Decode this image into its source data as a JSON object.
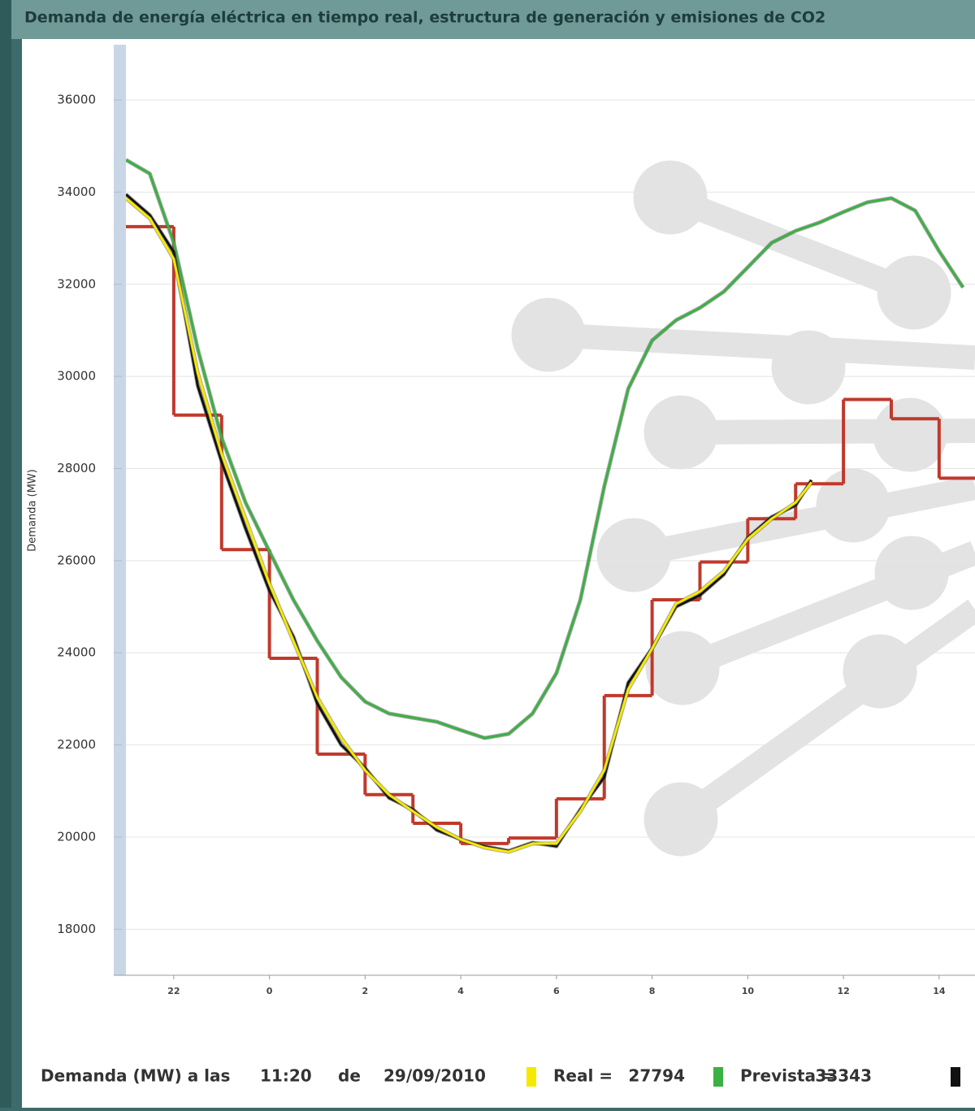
{
  "chart_data": {
    "type": "line",
    "title": "Demanda de energía eléctrica en tiempo real, estructura de generación y emisiones de CO2",
    "y_label": "Demanda (MW)",
    "xlim": [
      -3,
      14.75
    ],
    "xticks": [
      {
        "value": -2,
        "label": "22"
      },
      {
        "value": 0,
        "label": "0"
      },
      2,
      4,
      6,
      8,
      10,
      12,
      14
    ],
    "ylim": [
      17000,
      37200
    ],
    "yticks": [
      18000,
      20000,
      22000,
      24000,
      26000,
      28000,
      30000,
      32000,
      34000,
      36000
    ],
    "grid": true,
    "status": {
      "prefix": "Demanda (MW) a las",
      "time": "11:20",
      "de": "de",
      "date": "29/09/2010"
    },
    "series": [
      {
        "color": "#c0392b",
        "step": true,
        "x": [
          -3,
          -2,
          -1,
          0,
          1,
          2,
          3,
          4,
          5,
          6,
          7,
          8,
          9,
          10,
          11,
          12,
          13,
          14
        ],
        "values": [
          33250,
          29160,
          26240,
          23880,
          21800,
          20920,
          20300,
          19860,
          19980,
          20830,
          23070,
          25150,
          25970,
          26910,
          27670,
          29500,
          29080,
          27790
        ]
      },
      {
        "name": "Prevista =",
        "color": "#3cb043",
        "current": 33343,
        "x": [
          -3,
          -2.5,
          -2,
          -1.5,
          -1,
          -0.5,
          0,
          0.5,
          1,
          1.5,
          2,
          2.5,
          3,
          3.5,
          4,
          4.5,
          5,
          5.5,
          6,
          6.5,
          7,
          7.5,
          8,
          8.5,
          9,
          9.5,
          10,
          10.5,
          11,
          11.5,
          12,
          12.5,
          13,
          13.5,
          14,
          14.5
        ],
        "values": [
          34700,
          34400,
          32900,
          30600,
          28670,
          27260,
          26200,
          25150,
          24260,
          23470,
          22940,
          22680,
          22590,
          22500,
          22320,
          22150,
          22240,
          22680,
          23560,
          25150,
          27610,
          29730,
          30780,
          31220,
          31490,
          31840,
          32370,
          32900,
          33160,
          33340,
          33570,
          33780,
          33870,
          33600,
          32720,
          31930
        ]
      },
      {
        "color": "#111111",
        "x": [
          -3,
          -2.5,
          -2,
          -1.5,
          -1,
          -0.5,
          0,
          0.5,
          1,
          1.5,
          2,
          2.5,
          3,
          3.5,
          4,
          4.5,
          5,
          5.5,
          6,
          6.5,
          7,
          7.5,
          8,
          8.5,
          9,
          9.5,
          10,
          10.5,
          11,
          11.33
        ],
        "values": [
          33950,
          33500,
          32700,
          29800,
          28150,
          26700,
          25350,
          24350,
          22900,
          22000,
          21500,
          20850,
          20600,
          20150,
          19950,
          19800,
          19700,
          19880,
          19800,
          20600,
          21300,
          23350,
          24100,
          25000,
          25250,
          25700,
          26500,
          26950,
          27200,
          27750
        ]
      },
      {
        "name": "Real =",
        "color": "#f5e900",
        "current": 27794,
        "x": [
          -3,
          -2.5,
          -2,
          -1.5,
          -1,
          -0.5,
          0,
          0.5,
          1,
          1.5,
          2,
          2.5,
          3,
          3.5,
          4,
          4.5,
          5,
          5.5,
          6,
          6.5,
          7,
          7.5,
          8,
          8.5,
          9,
          9.5,
          10,
          10.5,
          11,
          11.33
        ],
        "values": [
          33870,
          33430,
          32550,
          30080,
          28320,
          26910,
          25500,
          24260,
          23030,
          22150,
          21450,
          20920,
          20560,
          20210,
          19950,
          19770,
          19680,
          19860,
          19860,
          20560,
          21450,
          23210,
          24090,
          25060,
          25330,
          25770,
          26470,
          26910,
          27260,
          27700
        ]
      }
    ]
  }
}
